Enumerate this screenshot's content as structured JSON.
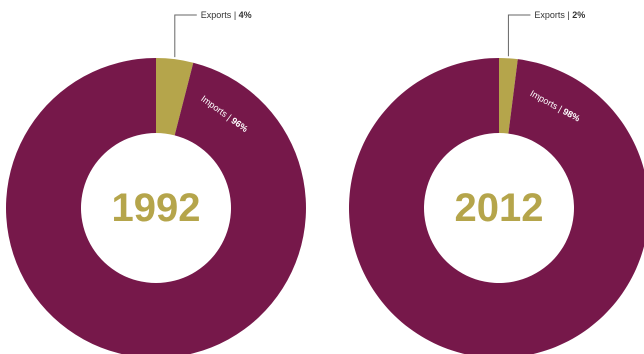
{
  "colors": {
    "exports": "#b5a54b",
    "imports": "#76184a",
    "year_text": "#b5a54b",
    "callout_text": "#333333",
    "leader_line": "#666666",
    "slice_label": "#ffffff"
  },
  "chart_data": [
    {
      "type": "pie",
      "center_label": "1992",
      "slices": [
        {
          "name": "Exports",
          "value": 4,
          "label": "4%"
        },
        {
          "name": "Imports",
          "value": 96,
          "label": "96%"
        }
      ]
    },
    {
      "type": "pie",
      "center_label": "2012",
      "slices": [
        {
          "name": "Exports",
          "value": 2,
          "label": "2%"
        },
        {
          "name": "Imports",
          "value": 98,
          "label": "98%"
        }
      ]
    }
  ]
}
